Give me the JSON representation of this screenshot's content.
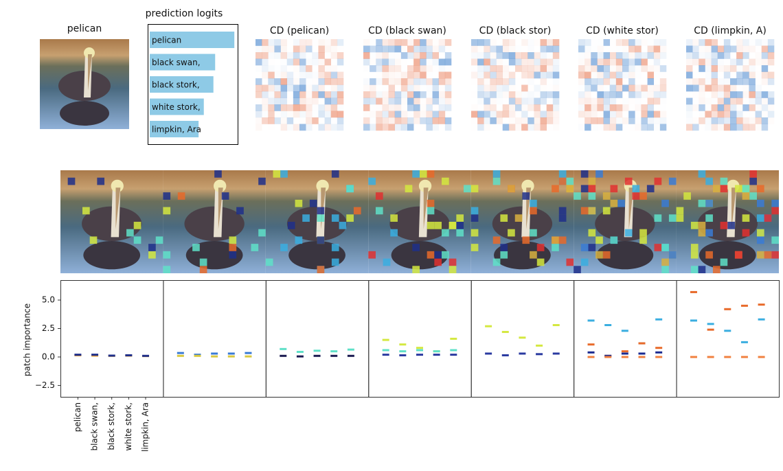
{
  "image_title": "pelican",
  "logits": {
    "title": "prediction logits",
    "labels": [
      "pelican",
      "black swan,",
      "black stork,",
      "white stork,",
      "limpkin, Ara"
    ],
    "values": [
      0.97,
      0.75,
      0.73,
      0.62,
      0.56
    ],
    "color": "#8ecae6"
  },
  "cd_titles": [
    "CD (pelican)",
    "CD (black swan)",
    "CD (black stor)",
    "CD (white stor)",
    "CD (limpkin, A)"
  ],
  "chart_data": [
    {
      "type": "scatter",
      "ylabel": "patch importance",
      "categories": [
        "pelican",
        "black swan,",
        "black stork,",
        "white stork,",
        "limpkin, Ara"
      ],
      "ylim": [
        -3.5,
        6.75
      ],
      "yticks": [
        {
          "value": -2.5,
          "label": "−2.5"
        },
        {
          "value": 0,
          "label": "0.0"
        },
        {
          "value": 2.5,
          "label": "2.5"
        },
        {
          "value": 5,
          "label": "5.0"
        }
      ],
      "series": [
        {
          "color": "#e8a33a",
          "values": [
            0.15,
            0.12,
            0.1,
            0.12,
            0.08
          ]
        },
        {
          "color": "#1f2f8a",
          "values": [
            0.2,
            0.2,
            0.12,
            0.15,
            0.1
          ]
        }
      ]
    },
    {
      "type": "scatter",
      "ylim": [
        -3.5,
        6.75
      ],
      "series": [
        {
          "color": "#3a7bd5",
          "values": [
            0.35,
            0.2,
            0.3,
            0.3,
            0.35
          ]
        },
        {
          "color": "#d8c840",
          "values": [
            0.1,
            0.1,
            0.05,
            0.05,
            0.05
          ]
        }
      ]
    },
    {
      "type": "scatter",
      "ylim": [
        -3.5,
        6.75
      ],
      "series": [
        {
          "color": "#5fe0c8",
          "values": [
            0.7,
            0.45,
            0.55,
            0.5,
            0.65
          ]
        },
        {
          "color": "#1a1a50",
          "values": [
            0.1,
            0.05,
            0.1,
            0.1,
            0.1
          ]
        }
      ]
    },
    {
      "type": "scatter",
      "ylim": [
        -3.5,
        6.75
      ],
      "series": [
        {
          "color": "#d4e840",
          "values": [
            1.5,
            1.1,
            0.8,
            0.5,
            1.6
          ]
        },
        {
          "color": "#5fe0c8",
          "values": [
            0.6,
            0.5,
            0.6,
            0.5,
            0.6
          ]
        },
        {
          "color": "#2a3aa0",
          "values": [
            0.2,
            0.15,
            0.2,
            0.2,
            0.2
          ]
        }
      ]
    },
    {
      "type": "scatter",
      "ylim": [
        -3.5,
        6.75
      ],
      "series": [
        {
          "color": "#d4e840",
          "values": [
            2.7,
            2.2,
            1.7,
            1.0,
            2.8
          ]
        },
        {
          "color": "#2a3aa0",
          "values": [
            0.3,
            0.15,
            0.3,
            0.25,
            0.3
          ]
        }
      ]
    },
    {
      "type": "scatter",
      "ylim": [
        -3.5,
        6.75
      ],
      "series": [
        {
          "color": "#3aaee0",
          "values": [
            3.2,
            2.8,
            2.3,
            1.2,
            3.3
          ]
        },
        {
          "color": "#e86a2a",
          "values": [
            1.1,
            0.1,
            0.5,
            1.2,
            0.8
          ]
        },
        {
          "color": "#1a2a90",
          "values": [
            0.4,
            0.1,
            0.3,
            0.3,
            0.4
          ]
        },
        {
          "color": "#f08040",
          "values": [
            0.0,
            0.0,
            0.0,
            0.0,
            0.0
          ]
        }
      ]
    },
    {
      "type": "scatter",
      "ylim": [
        -3.5,
        6.75
      ],
      "series": [
        {
          "color": "#e86a2a",
          "values": [
            5.7,
            2.4,
            4.2,
            4.5,
            4.6
          ]
        },
        {
          "color": "#3aaee0",
          "values": [
            3.2,
            2.9,
            2.3,
            1.3,
            3.3
          ]
        },
        {
          "color": "#f08040",
          "values": [
            0.0,
            0.0,
            0.0,
            0.0,
            0.0
          ]
        }
      ]
    }
  ]
}
